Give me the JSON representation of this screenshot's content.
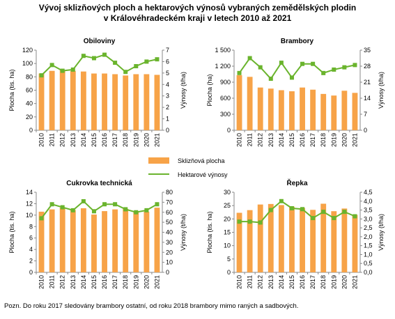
{
  "title_line1": "Vývoj sklizňových ploch a hektarových výnosů vybraných zemědělských plodin",
  "title_line2": "v Královéhradeckém kraji v letech 2010 až 2021",
  "legend": {
    "bar_label": "Sklizňová plocha",
    "line_label": "Hektarové výnosy"
  },
  "note": "Pozn. Do roku 2017 sledovány brambory ostatní, od roku 2018 brambory mimo raných a sadbových.",
  "colors": {
    "bar": "#f7a348",
    "line": "#6ab42d",
    "marker": "#6ab42d",
    "axis": "#888888"
  },
  "chart_data": [
    {
      "type": "bar+line",
      "title": "Obiloviny",
      "categories": [
        "2010",
        "2011",
        "2012",
        "2013",
        "2014",
        "2015",
        "2016",
        "2017",
        "2018",
        "2019",
        "2020",
        "2021"
      ],
      "ylabel": "Plocha (tis. ha)",
      "y2label": "Výnosy (t/ha)",
      "ylim": [
        0,
        120
      ],
      "yticks": [
        "0",
        "20",
        "40",
        "60",
        "80",
        "100",
        "120"
      ],
      "y2lim": [
        0,
        7
      ],
      "y2ticks": [
        "0",
        "1",
        "2",
        "3",
        "4",
        "5",
        "6",
        "7"
      ],
      "series": [
        {
          "name": "Sklizňová plocha",
          "kind": "bar",
          "axis": "left",
          "values": [
            85,
            89,
            90,
            89,
            88,
            85,
            85,
            84,
            82,
            84,
            84,
            83
          ]
        },
        {
          "name": "Hektarové výnosy",
          "kind": "line",
          "axis": "right",
          "values": [
            4.8,
            5.7,
            5.2,
            5.3,
            6.5,
            6.3,
            6.6,
            5.9,
            5.1,
            5.6,
            6.0,
            6.2
          ]
        }
      ]
    },
    {
      "type": "bar+line",
      "title": "Brambory",
      "categories": [
        "2010",
        "2011",
        "2012",
        "2013",
        "2014",
        "2015",
        "2016",
        "2017",
        "2018",
        "2019",
        "2020",
        "2021"
      ],
      "ylabel": "Plocha (ha)",
      "y2label": "Výnosy (t/ha)",
      "ylim": [
        0,
        1500
      ],
      "yticks": [
        "0",
        "300",
        "600",
        "900",
        "1 200",
        "1 500"
      ],
      "y2lim": [
        0,
        35
      ],
      "y2ticks": [
        "0",
        "7",
        "14",
        "21",
        "28",
        "35"
      ],
      "series": [
        {
          "name": "Sklizňová plocha",
          "kind": "bar",
          "axis": "left",
          "values": [
            1030,
            1000,
            800,
            780,
            750,
            730,
            800,
            760,
            680,
            650,
            740,
            700
          ]
        },
        {
          "name": "Hektarové výnosy",
          "kind": "line",
          "axis": "right",
          "values": [
            25,
            31.5,
            27.5,
            22.5,
            29.5,
            23,
            29,
            29,
            25,
            26.5,
            27.5,
            28.5
          ]
        }
      ]
    },
    {
      "type": "bar+line",
      "title": "Cukrovka technická",
      "categories": [
        "2010",
        "2011",
        "2012",
        "2013",
        "2014",
        "2015",
        "2016",
        "2017",
        "2018",
        "2019",
        "2020",
        "2021"
      ],
      "ylabel": "Plocha (tis. ha)",
      "y2label": "Výnosy (t/ha)",
      "ylim": [
        0,
        14
      ],
      "yticks": [
        "0",
        "2",
        "4",
        "6",
        "8",
        "10",
        "12",
        "14"
      ],
      "y2lim": [
        0,
        80
      ],
      "y2ticks": [
        "0",
        "10",
        "20",
        "30",
        "40",
        "50",
        "60",
        "70",
        "80"
      ],
      "series": [
        {
          "name": "Sklizňová plocha",
          "kind": "bar",
          "axis": "left",
          "values": [
            10.6,
            11.0,
            11.3,
            10.9,
            11.2,
            10.1,
            10.7,
            11.0,
            11.1,
            10.5,
            10.6,
            11.3
          ]
        },
        {
          "name": "Hektarové výnosy",
          "kind": "line",
          "axis": "right",
          "values": [
            54,
            68,
            65,
            62,
            71,
            61,
            68,
            68,
            63,
            60,
            62,
            68
          ]
        }
      ]
    },
    {
      "type": "bar+line",
      "title": "Řepka",
      "categories": [
        "2010",
        "2011",
        "2012",
        "2013",
        "2014",
        "2015",
        "2016",
        "2017",
        "2018",
        "2019",
        "2020",
        "2021"
      ],
      "ylabel": "Plocha (tis. ha)",
      "y2label": "Výnosy (t/ha)",
      "ylim": [
        0,
        30
      ],
      "yticks": [
        "0",
        "5",
        "10",
        "15",
        "20",
        "25",
        "30"
      ],
      "y2lim": [
        0,
        4.5
      ],
      "y2ticks": [
        "0,0",
        "0,5",
        "1,0",
        "1,5",
        "2,0",
        "2,5",
        "3,0",
        "3,5",
        "4,0",
        "4,5"
      ],
      "series": [
        {
          "name": "Sklizňová plocha",
          "kind": "bar",
          "axis": "left",
          "values": [
            22.3,
            23.3,
            25.4,
            25.6,
            25.2,
            24.6,
            24.1,
            23.4,
            25.7,
            22.9,
            23.9,
            21.5
          ]
        },
        {
          "name": "Hektarové výnosy",
          "kind": "line",
          "axis": "right",
          "values": [
            2.85,
            2.85,
            2.8,
            3.5,
            4.0,
            3.6,
            3.55,
            3.05,
            3.4,
            3.05,
            3.4,
            3.15
          ]
        }
      ]
    }
  ]
}
